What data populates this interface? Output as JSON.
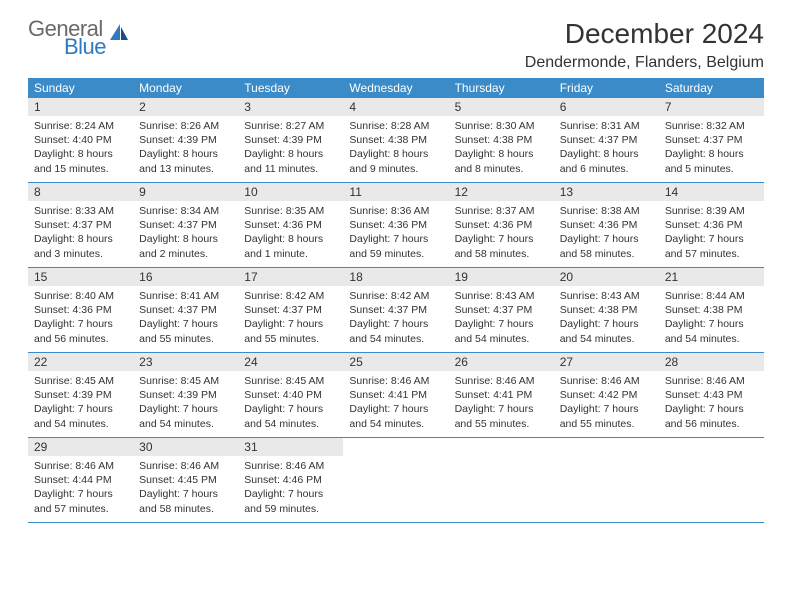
{
  "brand": {
    "part1": "General",
    "part2": "Blue"
  },
  "title": "December 2024",
  "location": "Dendermonde, Flanders, Belgium",
  "style": {
    "header_bg": "#3b8bc8",
    "header_fg": "#ffffff",
    "daynum_bg": "#e9e9e9",
    "rule_color": "#3b8bc8",
    "body_bg": "#ffffff",
    "text_color": "#333333",
    "brand_gray": "#6a6a6a",
    "brand_blue": "#2f7bbf",
    "month_title_fontsize": 28,
    "location_fontsize": 16,
    "weekday_fontsize": 12,
    "daynum_fontsize": 12,
    "body_fontsize": 10.5,
    "columns": 7
  },
  "weekdays": [
    "Sunday",
    "Monday",
    "Tuesday",
    "Wednesday",
    "Thursday",
    "Friday",
    "Saturday"
  ],
  "weeks": [
    [
      {
        "num": "1",
        "sunrise": "Sunrise: 8:24 AM",
        "sunset": "Sunset: 4:40 PM",
        "daylight1": "Daylight: 8 hours",
        "daylight2": "and 15 minutes."
      },
      {
        "num": "2",
        "sunrise": "Sunrise: 8:26 AM",
        "sunset": "Sunset: 4:39 PM",
        "daylight1": "Daylight: 8 hours",
        "daylight2": "and 13 minutes."
      },
      {
        "num": "3",
        "sunrise": "Sunrise: 8:27 AM",
        "sunset": "Sunset: 4:39 PM",
        "daylight1": "Daylight: 8 hours",
        "daylight2": "and 11 minutes."
      },
      {
        "num": "4",
        "sunrise": "Sunrise: 8:28 AM",
        "sunset": "Sunset: 4:38 PM",
        "daylight1": "Daylight: 8 hours",
        "daylight2": "and 9 minutes."
      },
      {
        "num": "5",
        "sunrise": "Sunrise: 8:30 AM",
        "sunset": "Sunset: 4:38 PM",
        "daylight1": "Daylight: 8 hours",
        "daylight2": "and 8 minutes."
      },
      {
        "num": "6",
        "sunrise": "Sunrise: 8:31 AM",
        "sunset": "Sunset: 4:37 PM",
        "daylight1": "Daylight: 8 hours",
        "daylight2": "and 6 minutes."
      },
      {
        "num": "7",
        "sunrise": "Sunrise: 8:32 AM",
        "sunset": "Sunset: 4:37 PM",
        "daylight1": "Daylight: 8 hours",
        "daylight2": "and 5 minutes."
      }
    ],
    [
      {
        "num": "8",
        "sunrise": "Sunrise: 8:33 AM",
        "sunset": "Sunset: 4:37 PM",
        "daylight1": "Daylight: 8 hours",
        "daylight2": "and 3 minutes."
      },
      {
        "num": "9",
        "sunrise": "Sunrise: 8:34 AM",
        "sunset": "Sunset: 4:37 PM",
        "daylight1": "Daylight: 8 hours",
        "daylight2": "and 2 minutes."
      },
      {
        "num": "10",
        "sunrise": "Sunrise: 8:35 AM",
        "sunset": "Sunset: 4:36 PM",
        "daylight1": "Daylight: 8 hours",
        "daylight2": "and 1 minute."
      },
      {
        "num": "11",
        "sunrise": "Sunrise: 8:36 AM",
        "sunset": "Sunset: 4:36 PM",
        "daylight1": "Daylight: 7 hours",
        "daylight2": "and 59 minutes."
      },
      {
        "num": "12",
        "sunrise": "Sunrise: 8:37 AM",
        "sunset": "Sunset: 4:36 PM",
        "daylight1": "Daylight: 7 hours",
        "daylight2": "and 58 minutes."
      },
      {
        "num": "13",
        "sunrise": "Sunrise: 8:38 AM",
        "sunset": "Sunset: 4:36 PM",
        "daylight1": "Daylight: 7 hours",
        "daylight2": "and 58 minutes."
      },
      {
        "num": "14",
        "sunrise": "Sunrise: 8:39 AM",
        "sunset": "Sunset: 4:36 PM",
        "daylight1": "Daylight: 7 hours",
        "daylight2": "and 57 minutes."
      }
    ],
    [
      {
        "num": "15",
        "sunrise": "Sunrise: 8:40 AM",
        "sunset": "Sunset: 4:36 PM",
        "daylight1": "Daylight: 7 hours",
        "daylight2": "and 56 minutes."
      },
      {
        "num": "16",
        "sunrise": "Sunrise: 8:41 AM",
        "sunset": "Sunset: 4:37 PM",
        "daylight1": "Daylight: 7 hours",
        "daylight2": "and 55 minutes."
      },
      {
        "num": "17",
        "sunrise": "Sunrise: 8:42 AM",
        "sunset": "Sunset: 4:37 PM",
        "daylight1": "Daylight: 7 hours",
        "daylight2": "and 55 minutes."
      },
      {
        "num": "18",
        "sunrise": "Sunrise: 8:42 AM",
        "sunset": "Sunset: 4:37 PM",
        "daylight1": "Daylight: 7 hours",
        "daylight2": "and 54 minutes."
      },
      {
        "num": "19",
        "sunrise": "Sunrise: 8:43 AM",
        "sunset": "Sunset: 4:37 PM",
        "daylight1": "Daylight: 7 hours",
        "daylight2": "and 54 minutes."
      },
      {
        "num": "20",
        "sunrise": "Sunrise: 8:43 AM",
        "sunset": "Sunset: 4:38 PM",
        "daylight1": "Daylight: 7 hours",
        "daylight2": "and 54 minutes."
      },
      {
        "num": "21",
        "sunrise": "Sunrise: 8:44 AM",
        "sunset": "Sunset: 4:38 PM",
        "daylight1": "Daylight: 7 hours",
        "daylight2": "and 54 minutes."
      }
    ],
    [
      {
        "num": "22",
        "sunrise": "Sunrise: 8:45 AM",
        "sunset": "Sunset: 4:39 PM",
        "daylight1": "Daylight: 7 hours",
        "daylight2": "and 54 minutes."
      },
      {
        "num": "23",
        "sunrise": "Sunrise: 8:45 AM",
        "sunset": "Sunset: 4:39 PM",
        "daylight1": "Daylight: 7 hours",
        "daylight2": "and 54 minutes."
      },
      {
        "num": "24",
        "sunrise": "Sunrise: 8:45 AM",
        "sunset": "Sunset: 4:40 PM",
        "daylight1": "Daylight: 7 hours",
        "daylight2": "and 54 minutes."
      },
      {
        "num": "25",
        "sunrise": "Sunrise: 8:46 AM",
        "sunset": "Sunset: 4:41 PM",
        "daylight1": "Daylight: 7 hours",
        "daylight2": "and 54 minutes."
      },
      {
        "num": "26",
        "sunrise": "Sunrise: 8:46 AM",
        "sunset": "Sunset: 4:41 PM",
        "daylight1": "Daylight: 7 hours",
        "daylight2": "and 55 minutes."
      },
      {
        "num": "27",
        "sunrise": "Sunrise: 8:46 AM",
        "sunset": "Sunset: 4:42 PM",
        "daylight1": "Daylight: 7 hours",
        "daylight2": "and 55 minutes."
      },
      {
        "num": "28",
        "sunrise": "Sunrise: 8:46 AM",
        "sunset": "Sunset: 4:43 PM",
        "daylight1": "Daylight: 7 hours",
        "daylight2": "and 56 minutes."
      }
    ],
    [
      {
        "num": "29",
        "sunrise": "Sunrise: 8:46 AM",
        "sunset": "Sunset: 4:44 PM",
        "daylight1": "Daylight: 7 hours",
        "daylight2": "and 57 minutes."
      },
      {
        "num": "30",
        "sunrise": "Sunrise: 8:46 AM",
        "sunset": "Sunset: 4:45 PM",
        "daylight1": "Daylight: 7 hours",
        "daylight2": "and 58 minutes."
      },
      {
        "num": "31",
        "sunrise": "Sunrise: 8:46 AM",
        "sunset": "Sunset: 4:46 PM",
        "daylight1": "Daylight: 7 hours",
        "daylight2": "and 59 minutes."
      },
      null,
      null,
      null,
      null
    ]
  ]
}
